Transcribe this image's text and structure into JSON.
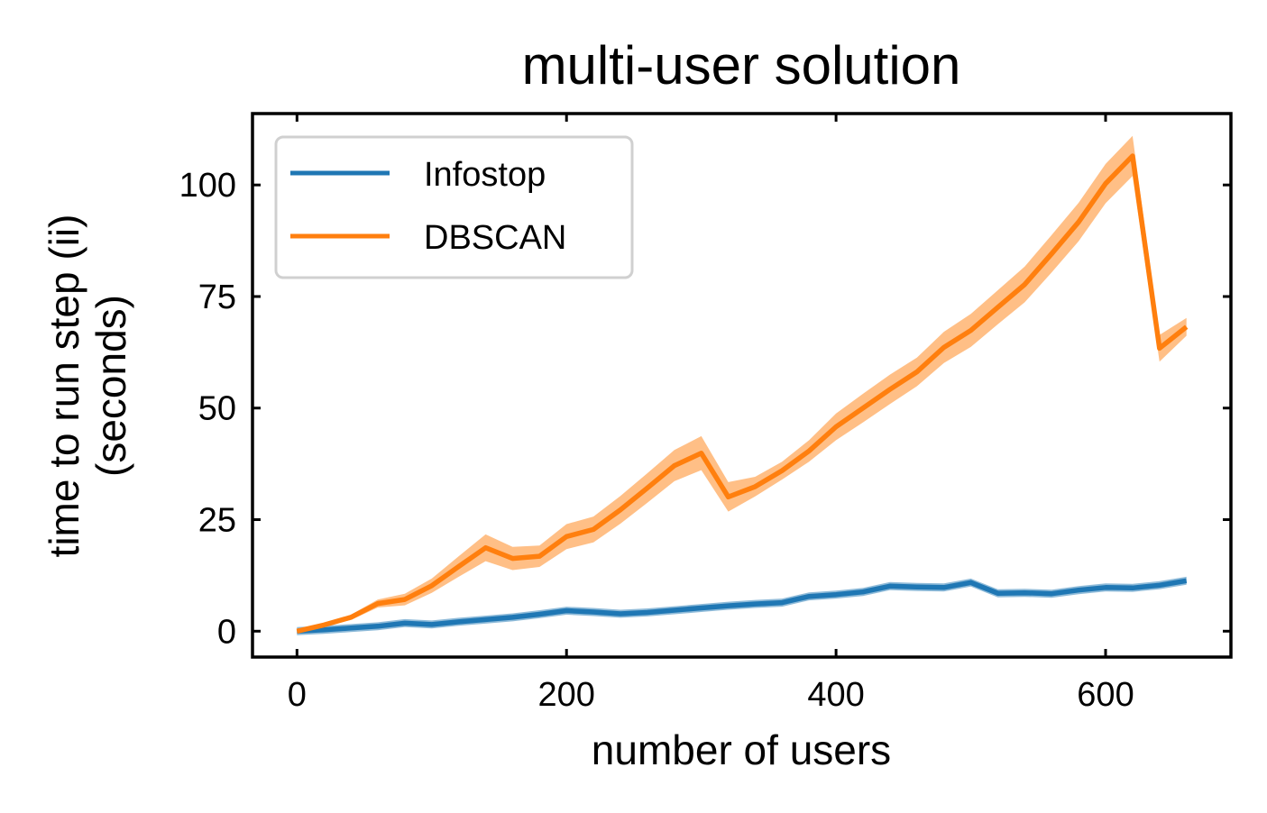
{
  "chart_data": {
    "type": "line",
    "title": "multi-user solution",
    "xlabel": "number of users",
    "ylabel": [
      "time to run step (ii)",
      "(seconds)"
    ],
    "xlim": [
      -33,
      693
    ],
    "ylim": [
      -5.8,
      116
    ],
    "xticks": [
      0,
      200,
      400,
      600
    ],
    "yticks": [
      0,
      25,
      50,
      75,
      100
    ],
    "grid": false,
    "legend_position": "top-left",
    "x": [
      0,
      20,
      40,
      60,
      80,
      100,
      120,
      140,
      160,
      180,
      200,
      220,
      240,
      260,
      280,
      300,
      320,
      340,
      360,
      380,
      400,
      420,
      440,
      460,
      480,
      500,
      520,
      540,
      560,
      580,
      600,
      620,
      640,
      660
    ],
    "series": [
      {
        "name": "Infostop",
        "color": "#1f77b4",
        "values": [
          0,
          0.3,
          0.7,
          1.1,
          1.8,
          1.5,
          2.1,
          2.6,
          3.1,
          3.8,
          4.6,
          4.3,
          3.9,
          4.2,
          4.7,
          5.2,
          5.7,
          6.1,
          6.4,
          7.8,
          8.2,
          8.8,
          10.1,
          9.9,
          9.8,
          10.9,
          8.5,
          8.6,
          8.4,
          9.2,
          9.8,
          9.7,
          10.3,
          11.3
        ],
        "band": 0.9
      },
      {
        "name": "DBSCAN",
        "color": "#ff7f0e",
        "values": [
          0,
          1.4,
          3.1,
          6.2,
          7.1,
          10.2,
          14.5,
          18.7,
          16.3,
          16.8,
          21.2,
          22.8,
          27.2,
          32.1,
          37.1,
          39.9,
          30.1,
          32.4,
          36.0,
          40.4,
          45.8,
          50.0,
          54.2,
          58.1,
          63.6,
          67.4,
          72.6,
          77.7,
          84.6,
          91.7,
          100.3,
          106.5,
          63.4,
          68.2
        ],
        "band": [
          0.3,
          0.4,
          0.6,
          0.9,
          1.3,
          1.6,
          2.3,
          3.0,
          2.6,
          2.4,
          2.8,
          2.9,
          3.1,
          3.3,
          3.5,
          3.8,
          3.3,
          2.2,
          2.0,
          2.4,
          3.0,
          3.2,
          3.3,
          3.2,
          3.5,
          3.7,
          3.8,
          4.0,
          4.2,
          4.3,
          4.4,
          4.5,
          3.0,
          2.0
        ]
      }
    ]
  }
}
